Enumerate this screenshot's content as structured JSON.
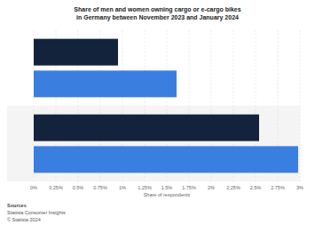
{
  "chart_data": {
    "type": "bar",
    "orientation": "horizontal",
    "title": "Share of men and women owning cargo or e-cargo bikes in Germany between November 2023 and January 2024",
    "x_label": "Share of respondents",
    "source_heading": "Sources",
    "source": "Statista Consumer Insights",
    "credit": "© Statista 2024",
    "categories": [
      null,
      null
    ],
    "series": [
      {
        "color": "#14233c",
        "values": [
          0.95,
          2.54
        ]
      },
      {
        "color": "#3a7fe0",
        "values": [
          1.61,
          2.98
        ]
      }
    ],
    "xlim": [
      0,
      3
    ],
    "xticks": [
      {
        "value": 0,
        "label": "0%"
      },
      {
        "value": 0.25,
        "label": "0.25%"
      },
      {
        "value": 0.5,
        "label": "0.5%"
      },
      {
        "value": 0.75,
        "label": "0.75%"
      },
      {
        "value": 1,
        "label": "1%"
      },
      {
        "value": 1.25,
        "label": "1.25%"
      },
      {
        "value": 1.5,
        "label": "1.5%"
      },
      {
        "value": 1.75,
        "label": "1.75%"
      },
      {
        "value": 2,
        "label": "2%"
      },
      {
        "value": 2.25,
        "label": "2.25%"
      },
      {
        "value": 2.5,
        "label": "2.5%"
      },
      {
        "value": 2.75,
        "label": "2.75%"
      },
      {
        "value": 3,
        "label": "3%"
      }
    ],
    "grid": true
  }
}
